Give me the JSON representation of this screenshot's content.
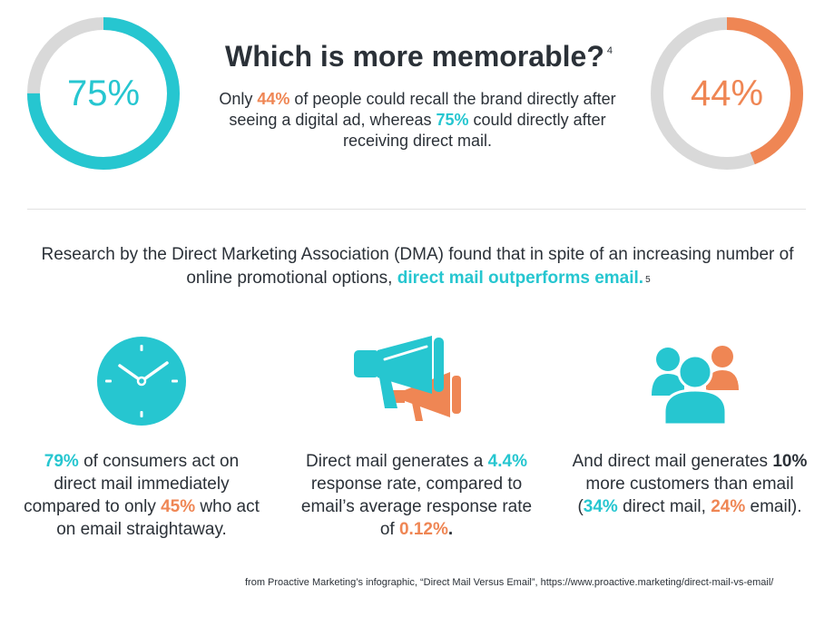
{
  "header": {
    "left_donut": {
      "label": "75%",
      "percent": 75,
      "color": "#26c6d0",
      "track_color": "#d9d9d9"
    },
    "right_donut": {
      "label": "44%",
      "percent": 44,
      "color": "#ef8654",
      "track_color": "#d9d9d9"
    },
    "title": "Which is more memorable?",
    "title_footnote": "4",
    "intro": {
      "part1": "Only ",
      "highlight1": "44%",
      "part2": " of people could recall the brand directly after seeing a digital ad, whereas ",
      "highlight2": "75%",
      "part3": " could directly after receiving direct mail."
    }
  },
  "research": {
    "text": "Research by the Direct Marketing Association (DMA) found that in spite of an increasing number of online promotional options, ",
    "highlight": "direct mail outperforms email.",
    "footnote": "5"
  },
  "stats": [
    {
      "icon": "clock-icon",
      "icon_color": "#26c6d0",
      "h1": "79%",
      "t1": " of consumers act on direct mail immediately compared to only ",
      "h2": "45%",
      "t2": " who act on email straightaway."
    },
    {
      "icon": "megaphone-icon",
      "icon_colors": [
        "#26c6d0",
        "#ef8654"
      ],
      "t0": "Direct mail generates a ",
      "h1": "4.4%",
      "t1": " response rate, compared to email’s average response rate of ",
      "h2": "0.12%",
      "t2": "."
    },
    {
      "icon": "users-icon",
      "icon_colors": [
        "#26c6d0",
        "#ef8654"
      ],
      "t0": "And direct mail generates ",
      "b1": "10%",
      "t1": " more customers than email (",
      "h1": "34%",
      "t2": " direct mail, ",
      "h2": "24%",
      "t3": " email)."
    }
  ],
  "source": "from Proactive Marketing’s infographic, “Direct Mail Versus Email”, https://www.proactive.marketing/direct-mail-vs-email/"
}
